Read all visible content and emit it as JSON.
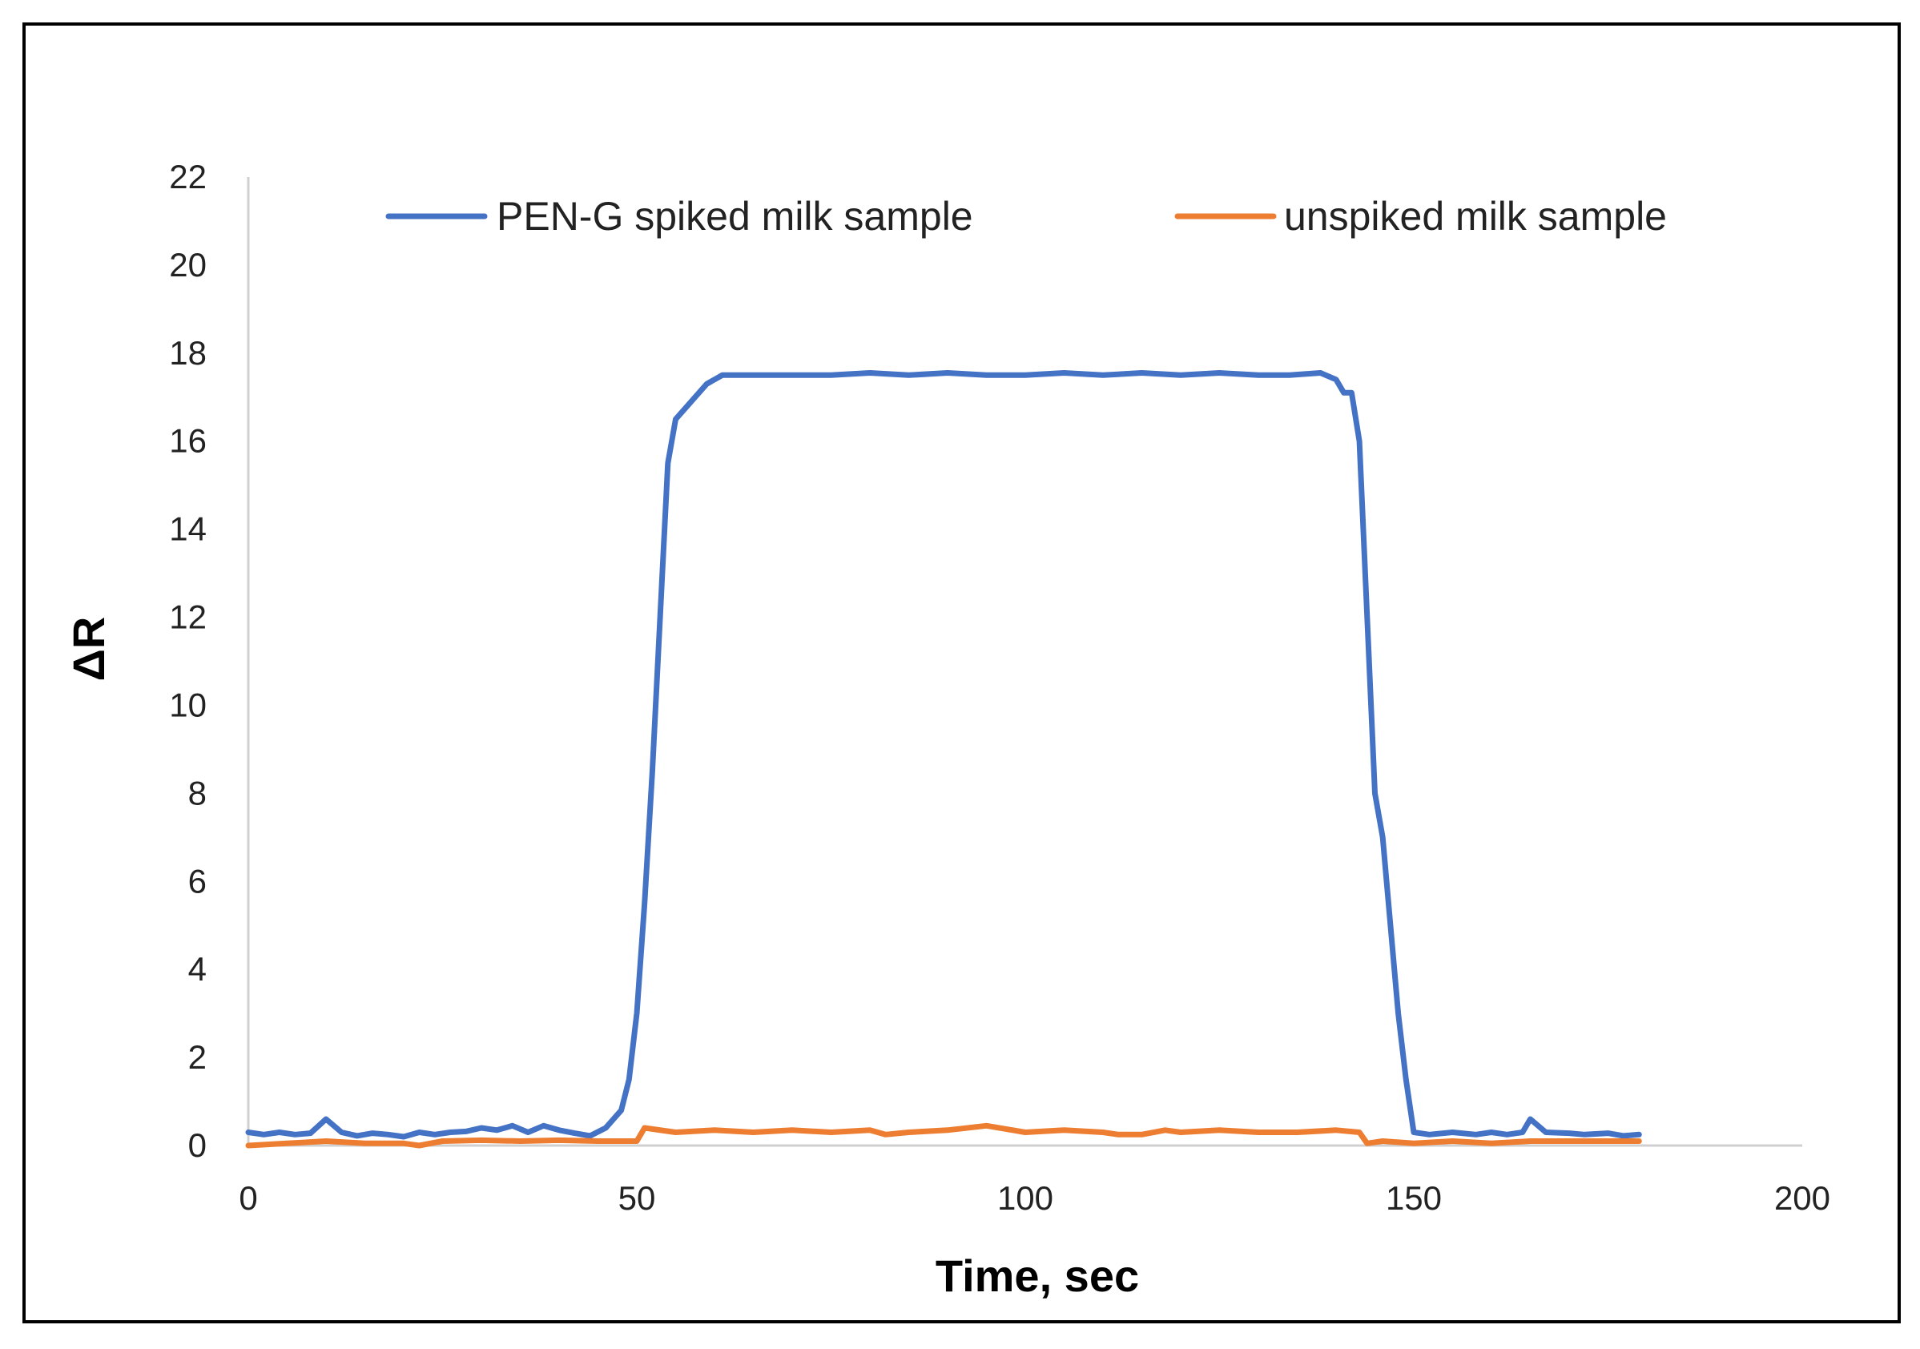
{
  "chart_data": {
    "type": "line",
    "title": "",
    "xlabel": "Time, sec",
    "ylabel": "ΔR",
    "xlim": [
      0,
      200
    ],
    "ylim": [
      0,
      22
    ],
    "xticks": [
      0,
      50,
      100,
      150,
      200
    ],
    "yticks": [
      0,
      2,
      4,
      6,
      8,
      10,
      12,
      14,
      16,
      18,
      20,
      22
    ],
    "grid": false,
    "legend_position": "top",
    "series": [
      {
        "name": "PEN-G spiked milk sample",
        "color": "#4472C4",
        "points": [
          [
            0,
            0.3
          ],
          [
            2,
            0.25
          ],
          [
            4,
            0.3
          ],
          [
            6,
            0.25
          ],
          [
            8,
            0.28
          ],
          [
            10,
            0.6
          ],
          [
            12,
            0.3
          ],
          [
            14,
            0.22
          ],
          [
            16,
            0.28
          ],
          [
            18,
            0.25
          ],
          [
            20,
            0.2
          ],
          [
            22,
            0.3
          ],
          [
            24,
            0.25
          ],
          [
            26,
            0.3
          ],
          [
            28,
            0.32
          ],
          [
            30,
            0.4
          ],
          [
            32,
            0.35
          ],
          [
            34,
            0.45
          ],
          [
            36,
            0.3
          ],
          [
            38,
            0.45
          ],
          [
            40,
            0.35
          ],
          [
            42,
            0.28
          ],
          [
            44,
            0.22
          ],
          [
            46,
            0.4
          ],
          [
            48,
            0.8
          ],
          [
            49,
            1.5
          ],
          [
            50,
            3.0
          ],
          [
            51,
            5.5
          ],
          [
            52,
            8.5
          ],
          [
            53,
            12.0
          ],
          [
            54,
            15.5
          ],
          [
            55,
            16.5
          ],
          [
            57,
            16.9
          ],
          [
            59,
            17.3
          ],
          [
            61,
            17.5
          ],
          [
            65,
            17.5
          ],
          [
            70,
            17.5
          ],
          [
            75,
            17.5
          ],
          [
            80,
            17.55
          ],
          [
            85,
            17.5
          ],
          [
            90,
            17.55
          ],
          [
            95,
            17.5
          ],
          [
            100,
            17.5
          ],
          [
            105,
            17.55
          ],
          [
            110,
            17.5
          ],
          [
            115,
            17.55
          ],
          [
            120,
            17.5
          ],
          [
            125,
            17.55
          ],
          [
            130,
            17.5
          ],
          [
            134,
            17.5
          ],
          [
            138,
            17.55
          ],
          [
            140,
            17.4
          ],
          [
            141,
            17.1
          ],
          [
            142,
            17.1
          ],
          [
            143,
            16.0
          ],
          [
            144,
            12.0
          ],
          [
            145,
            8.0
          ],
          [
            146,
            7.0
          ],
          [
            147,
            5.0
          ],
          [
            148,
            3.0
          ],
          [
            149,
            1.5
          ],
          [
            150,
            0.3
          ],
          [
            152,
            0.25
          ],
          [
            155,
            0.3
          ],
          [
            158,
            0.25
          ],
          [
            160,
            0.3
          ],
          [
            162,
            0.25
          ],
          [
            164,
            0.3
          ],
          [
            165,
            0.6
          ],
          [
            167,
            0.3
          ],
          [
            170,
            0.28
          ],
          [
            172,
            0.25
          ],
          [
            175,
            0.28
          ],
          [
            177,
            0.22
          ],
          [
            179,
            0.25
          ]
        ]
      },
      {
        "name": "unspiked milk sample",
        "color": "#ED7D31",
        "points": [
          [
            0,
            0.0
          ],
          [
            5,
            0.05
          ],
          [
            10,
            0.1
          ],
          [
            15,
            0.05
          ],
          [
            20,
            0.05
          ],
          [
            22,
            0.0
          ],
          [
            25,
            0.1
          ],
          [
            30,
            0.12
          ],
          [
            35,
            0.1
          ],
          [
            40,
            0.12
          ],
          [
            45,
            0.1
          ],
          [
            49,
            0.1
          ],
          [
            50,
            0.1
          ],
          [
            51,
            0.4
          ],
          [
            55,
            0.3
          ],
          [
            60,
            0.35
          ],
          [
            65,
            0.3
          ],
          [
            70,
            0.35
          ],
          [
            75,
            0.3
          ],
          [
            80,
            0.35
          ],
          [
            82,
            0.25
          ],
          [
            85,
            0.3
          ],
          [
            90,
            0.35
          ],
          [
            95,
            0.45
          ],
          [
            100,
            0.3
          ],
          [
            105,
            0.35
          ],
          [
            110,
            0.3
          ],
          [
            112,
            0.25
          ],
          [
            115,
            0.25
          ],
          [
            118,
            0.35
          ],
          [
            120,
            0.3
          ],
          [
            125,
            0.35
          ],
          [
            130,
            0.3
          ],
          [
            135,
            0.3
          ],
          [
            140,
            0.35
          ],
          [
            143,
            0.3
          ],
          [
            144,
            0.05
          ],
          [
            146,
            0.1
          ],
          [
            150,
            0.05
          ],
          [
            155,
            0.1
          ],
          [
            160,
            0.05
          ],
          [
            165,
            0.1
          ],
          [
            170,
            0.1
          ],
          [
            175,
            0.1
          ],
          [
            179,
            0.1
          ]
        ]
      }
    ]
  }
}
